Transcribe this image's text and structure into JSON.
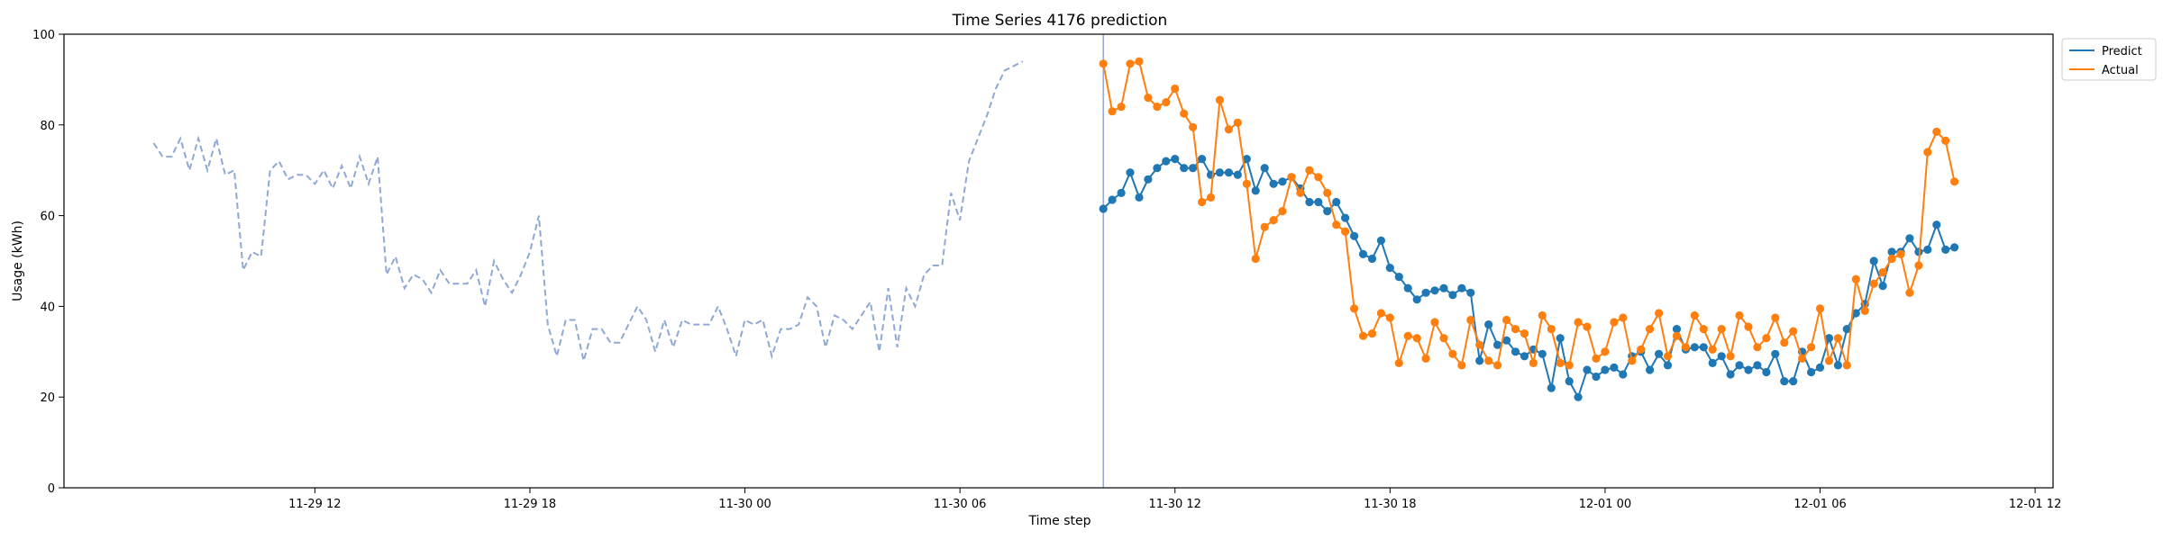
{
  "chart_data": {
    "type": "line",
    "title": "Time Series 4176 prediction",
    "xlabel": "Time step",
    "ylabel": "Usage (kWh)",
    "xlim": [
      "2023-11-29 05:00",
      "2023-12-01 12:30"
    ],
    "ylim": [
      0,
      100
    ],
    "yticks": [
      0,
      20,
      40,
      60,
      80,
      100
    ],
    "xticks": [
      {
        "t": "2023-11-29 12:00",
        "label": "11-29 12"
      },
      {
        "t": "2023-11-29 18:00",
        "label": "11-29 18"
      },
      {
        "t": "2023-11-30 00:00",
        "label": "11-30 00"
      },
      {
        "t": "2023-11-30 06:00",
        "label": "11-30 06"
      },
      {
        "t": "2023-11-30 12:00",
        "label": "11-30 12"
      },
      {
        "t": "2023-11-30 18:00",
        "label": "11-30 18"
      },
      {
        "t": "2023-12-01 00:00",
        "label": "12-01 00"
      },
      {
        "t": "2023-12-01 06:00",
        "label": "12-01 06"
      },
      {
        "t": "2023-12-01 12:00",
        "label": "12-01 12"
      }
    ],
    "grid": false,
    "legend_position": "top-right",
    "forecast_start": "2023-11-30 10:00",
    "history": {
      "start": "2023-11-29 07:30",
      "interval_minutes": 15,
      "color": "#8fa8d4",
      "values": [
        76,
        73,
        73,
        77,
        70,
        77,
        70,
        77,
        69,
        70,
        48,
        52,
        51,
        70,
        72,
        68,
        69,
        69,
        67,
        70,
        66,
        71,
        66,
        73,
        67,
        73,
        47,
        51,
        44,
        47,
        46,
        43,
        48,
        45,
        45,
        45,
        48,
        40,
        50,
        46,
        43,
        47,
        52,
        60,
        36,
        29,
        37,
        37,
        28,
        35,
        35,
        32,
        32,
        36,
        40,
        37,
        30,
        37,
        31,
        37,
        36,
        36,
        36,
        40,
        35,
        29,
        37,
        36,
        37,
        29,
        35,
        35,
        36,
        42,
        40,
        31,
        38,
        37,
        35,
        38,
        41,
        30,
        44,
        31,
        44,
        40,
        47,
        49,
        49,
        65,
        59,
        72,
        77,
        82,
        88,
        92,
        93,
        94
      ]
    },
    "series": [
      {
        "name": "Predict",
        "color": "#1f77b4",
        "start": "2023-11-30 10:00",
        "interval_minutes": 15,
        "values": [
          61.5,
          63.5,
          65,
          69.5,
          64,
          68,
          70.5,
          72,
          72.5,
          70.5,
          70.5,
          72.5,
          69,
          69.5,
          69.5,
          69,
          72.5,
          65.5,
          70.5,
          67,
          67.5,
          68.5,
          66,
          63,
          63,
          61,
          63,
          59.5,
          55.5,
          51.5,
          50.5,
          54.5,
          48.5,
          46.5,
          44,
          41.5,
          43,
          43.5,
          44,
          42.5,
          44,
          43,
          28,
          36,
          31.5,
          32.5,
          30,
          29,
          30.5,
          29.5,
          22,
          33,
          23.5,
          20,
          26,
          24.5,
          26,
          26.5,
          25,
          29,
          30,
          26,
          29.5,
          27,
          35,
          30.5,
          31,
          31,
          27.5,
          29,
          25,
          27,
          26,
          27,
          25.5,
          29.5,
          23.5,
          23.5,
          30,
          25.5,
          26.5,
          33,
          27,
          35,
          38.5,
          40.5,
          50,
          44.5,
          52,
          52,
          55,
          52,
          52.5,
          58,
          52.5,
          53
        ]
      },
      {
        "name": "Actual",
        "color": "#ff7f0e",
        "start": "2023-11-30 10:00",
        "interval_minutes": 15,
        "values": [
          93.5,
          83,
          84,
          93.5,
          94,
          86,
          84,
          85,
          88,
          82.5,
          79.5,
          63,
          64,
          85.5,
          79,
          80.5,
          67,
          50.5,
          57.5,
          59,
          61,
          68.5,
          65,
          70,
          68.5,
          65,
          58,
          56.5,
          39.5,
          33.5,
          34,
          38.5,
          37.5,
          27.5,
          33.5,
          33,
          28.5,
          36.5,
          33,
          29.5,
          27,
          37,
          31.5,
          28,
          27,
          37,
          35,
          34,
          27.5,
          38,
          35,
          27.5,
          27,
          36.5,
          35.5,
          28.5,
          30,
          36.5,
          37.5,
          28,
          30.5,
          35,
          38.5,
          29,
          33.5,
          31,
          38,
          35,
          30.5,
          35,
          29,
          38,
          35.5,
          31,
          33,
          37.5,
          32,
          34.5,
          28.5,
          31,
          39.5,
          28,
          33,
          27,
          46,
          39,
          45,
          47.5,
          50.5,
          51.5,
          43,
          49,
          74,
          78.5,
          76.5,
          67.5
        ]
      }
    ]
  }
}
